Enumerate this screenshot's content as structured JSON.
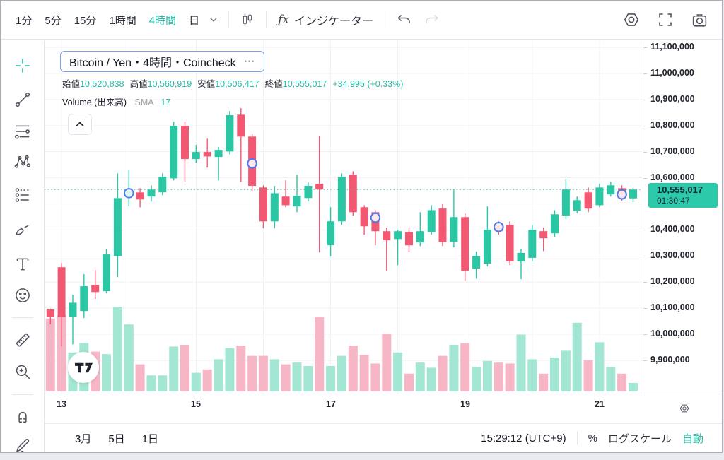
{
  "colors": {
    "accent": "#23bda7",
    "up": "#2bc7a5",
    "down": "#f25872",
    "up_volume": "#a3e6d3",
    "down_volume": "#f7b6c6",
    "marker_blue": "#4a7bf0",
    "badge_bg": "#2dc9ab",
    "grid": "#f0f2f6",
    "text_dark": "#131722"
  },
  "header": {
    "timeframes": [
      "1分",
      "5分",
      "15分",
      "1時間",
      "4時間",
      "日"
    ],
    "active_timeframe": "4時間",
    "fx_label": "ƒx",
    "indicators_label": "インジケーター",
    "icons": [
      "chevron-down",
      "candlestick-style",
      "fx",
      "undo",
      "redo",
      "settings",
      "fullscreen",
      "camera"
    ]
  },
  "left_toolbar": {
    "tools": [
      "crosshair",
      "trend-line",
      "fib-retracement",
      "xabcd-pattern",
      "forecast",
      "brush",
      "text",
      "emoji",
      "ruler",
      "zoom-in",
      "magnet",
      "pencil"
    ]
  },
  "legend": {
    "title": "Bitcoin / Yen・4時間・Coincheck",
    "more_dots": "•••",
    "ohlc": [
      {
        "label": "始値",
        "value": "10,520,838"
      },
      {
        "label": "高値",
        "value": "10,560,919"
      },
      {
        "label": "安値",
        "value": "10,506,417"
      },
      {
        "label": "終値",
        "value": "10,555,017"
      }
    ],
    "change": "+34,995 (+0.33%)",
    "volume_label": "Volume (出来高)",
    "sma_label": "SMA",
    "sma_value": "17"
  },
  "price_axis": {
    "ticks": [
      "11,100,000",
      "11,000,000",
      "10,900,000",
      "10,800,000",
      "10,700,000",
      "10,600,000",
      "10,400,000",
      "10,300,000",
      "10,200,000",
      "10,100,000",
      "10,000,000",
      "9,900,000"
    ],
    "last_price": "10,555,017",
    "countdown": "01:30:47"
  },
  "footer": {
    "date_range_buttons": [
      "3月",
      "5日",
      "1日"
    ],
    "clock": "15:29:12 (UTC+9)",
    "percent_label": "%",
    "log_scale_label": "ログスケール",
    "auto_label": "自動"
  },
  "chart_data": {
    "type": "candlestick",
    "symbol": "Bitcoin / Yen",
    "exchange": "Coincheck",
    "interval": "4時間",
    "title": "Bitcoin / Yen・4時間・Coincheck",
    "legend_ohlc": {
      "open": 10520838,
      "high": 10560919,
      "low": 10506417,
      "close": 10555017,
      "change": 34995,
      "change_pct": 0.33
    },
    "current_price": 10555017,
    "countdown": "01:30:47",
    "price_axis": {
      "min": 9900000,
      "max": 11100000,
      "step": 100000
    },
    "time_ticks": [
      {
        "label": "13",
        "index": 1
      },
      {
        "label": "15",
        "index": 13
      },
      {
        "label": "17",
        "index": 25
      },
      {
        "label": "19",
        "index": 37
      },
      {
        "label": "21",
        "index": 49
      }
    ],
    "candles": [
      [
        10095000,
        10098000,
        10038000,
        10067000
      ],
      [
        10257000,
        10273000,
        9953000,
        10067000
      ],
      [
        10067000,
        10151000,
        9961000,
        10121000
      ],
      [
        10089000,
        10230000,
        10062000,
        10184000
      ],
      [
        10189000,
        10246000,
        10135000,
        10162000
      ],
      [
        10165000,
        10327000,
        10157000,
        10306000
      ],
      [
        10300000,
        10617000,
        10219000,
        10522000
      ],
      [
        10528000,
        10631000,
        10490000,
        10550000
      ],
      [
        10544000,
        10560000,
        10487000,
        10517000
      ],
      [
        10528000,
        10571000,
        10509000,
        10555000
      ],
      [
        10544000,
        10617000,
        10533000,
        10604000
      ],
      [
        10598000,
        10815000,
        10590000,
        10799000
      ],
      [
        10799000,
        10815000,
        10584000,
        10672000
      ],
      [
        10672000,
        10726000,
        10658000,
        10699000
      ],
      [
        10699000,
        10750000,
        10639000,
        10682000
      ],
      [
        10680000,
        10718000,
        10590000,
        10707000
      ],
      [
        10701000,
        10856000,
        10690000,
        10840000
      ],
      [
        10842000,
        10867000,
        10584000,
        10758000
      ],
      [
        10758000,
        10768000,
        10549000,
        10569000
      ],
      [
        10563000,
        10571000,
        10406000,
        10433000
      ],
      [
        10433000,
        10569000,
        10406000,
        10541000
      ],
      [
        10528000,
        10590000,
        10487000,
        10495000
      ],
      [
        10490000,
        10612000,
        10468000,
        10531000
      ],
      [
        10522000,
        10582000,
        10509000,
        10569000
      ],
      [
        10577000,
        10761000,
        10314000,
        10555000
      ],
      [
        10341000,
        10487000,
        10298000,
        10433000
      ],
      [
        10433000,
        10617000,
        10420000,
        10604000
      ],
      [
        10612000,
        10625000,
        10455000,
        10468000
      ],
      [
        10487000,
        10495000,
        10382000,
        10414000
      ],
      [
        10468000,
        10476000,
        10341000,
        10395000
      ],
      [
        10395000,
        10409000,
        10243000,
        10360000
      ],
      [
        10365000,
        10401000,
        10265000,
        10395000
      ],
      [
        10392000,
        10409000,
        10314000,
        10341000
      ],
      [
        10352000,
        10468000,
        10338000,
        10395000
      ],
      [
        10392000,
        10495000,
        10382000,
        10476000
      ],
      [
        10482000,
        10501000,
        10338000,
        10354000
      ],
      [
        10354000,
        10555000,
        10333000,
        10449000
      ],
      [
        10449000,
        10463000,
        10205000,
        10243000
      ],
      [
        10252000,
        10317000,
        10213000,
        10300000
      ],
      [
        10271000,
        10490000,
        10260000,
        10401000
      ],
      [
        10420000,
        10433000,
        10382000,
        10395000
      ],
      [
        10420000,
        10433000,
        10265000,
        10279000
      ],
      [
        10279000,
        10328000,
        10211000,
        10312000
      ],
      [
        10293000,
        10420000,
        10279000,
        10401000
      ],
      [
        10395000,
        10409000,
        10319000,
        10368000
      ],
      [
        10387000,
        10476000,
        10374000,
        10460000
      ],
      [
        10455000,
        10596000,
        10441000,
        10555000
      ],
      [
        10474000,
        10528000,
        10463000,
        10514000
      ],
      [
        10544000,
        10563000,
        10468000,
        10482000
      ],
      [
        10495000,
        10577000,
        10487000,
        10563000
      ],
      [
        10536000,
        10585000,
        10528000,
        10571000
      ],
      [
        10560000,
        10571000,
        10512000,
        10522000
      ],
      [
        10520838,
        10560919,
        10506417,
        10555017
      ]
    ],
    "volume_rel": [
      0.86,
      0.9,
      0.46,
      0.57,
      0.47,
      0.44,
      1.0,
      0.79,
      0.32,
      0.19,
      0.19,
      0.53,
      0.55,
      0.22,
      0.26,
      0.38,
      0.51,
      0.54,
      0.42,
      0.42,
      0.38,
      0.32,
      0.34,
      0.3,
      0.88,
      0.3,
      0.42,
      0.54,
      0.43,
      0.33,
      0.68,
      0.46,
      0.21,
      0.34,
      0.28,
      0.42,
      0.55,
      0.57,
      0.29,
      0.36,
      0.34,
      0.33,
      0.67,
      0.38,
      0.21,
      0.4,
      0.48,
      0.81,
      0.37,
      0.58,
      0.29,
      0.21,
      0.1
    ],
    "markers": [
      {
        "index": 7,
        "price": 10541000
      },
      {
        "index": 18,
        "price": 10655000
      },
      {
        "index": 29,
        "price": 10447000
      },
      {
        "index": 40,
        "price": 10411000
      },
      {
        "index": 51,
        "price": 10536000
      }
    ]
  }
}
